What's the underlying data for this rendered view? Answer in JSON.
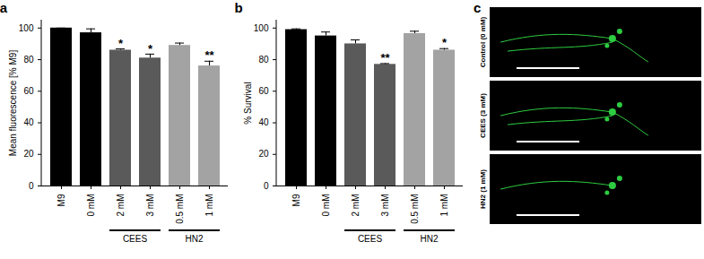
{
  "chart_data": [
    {
      "type": "bar",
      "title": "a",
      "categories": [
        "M9",
        "0 mM",
        "2 mM",
        "3 mM",
        "0.5 mM",
        "1 mM"
      ],
      "values": [
        100,
        97,
        86,
        81,
        89,
        76
      ],
      "errors": [
        0,
        2.5,
        0.8,
        2.5,
        1.5,
        3
      ],
      "significance": [
        null,
        null,
        "*",
        "*",
        null,
        "**"
      ],
      "colors": [
        "#000000",
        "#000000",
        "#5a5a5a",
        "#5a5a5a",
        "#a3a3a3",
        "#a3a3a3"
      ],
      "groups": [
        {
          "label": "CEES",
          "categories": [
            "2 mM",
            "3 mM"
          ]
        },
        {
          "label": "HN2",
          "categories": [
            "0.5 mM",
            "1 mM"
          ]
        }
      ],
      "y_label": "Mean fluorescence [% M9]",
      "ylim": [
        0,
        105
      ],
      "yticks": [
        0,
        20,
        40,
        60,
        80,
        100
      ]
    },
    {
      "type": "bar",
      "title": "b",
      "categories": [
        "M9",
        "0 mM",
        "2 mM",
        "3 mM",
        "0.5 mM",
        "1 mM"
      ],
      "values": [
        99,
        95,
        90,
        77,
        96.5,
        86
      ],
      "errors": [
        0.5,
        2.5,
        2.5,
        0.5,
        1.5,
        1
      ],
      "significance": [
        null,
        null,
        null,
        "**",
        null,
        "*"
      ],
      "colors": [
        "#000000",
        "#000000",
        "#5a5a5a",
        "#5a5a5a",
        "#a3a3a3",
        "#a3a3a3"
      ],
      "groups": [
        {
          "label": "CEES",
          "categories": [
            "2 mM",
            "3 mM"
          ]
        },
        {
          "label": "HN2",
          "categories": [
            "0.5 mM",
            "1 mM"
          ]
        }
      ],
      "y_label": "% Survival",
      "ylim": [
        0,
        105
      ],
      "yticks": [
        0,
        20,
        40,
        60,
        80,
        100
      ]
    }
  ],
  "image_panel": {
    "title": "c",
    "images": [
      {
        "label": "Control (0 mM)"
      },
      {
        "label": "CEES (3 mM)"
      },
      {
        "label": "HN2 (1 mM)"
      }
    ]
  }
}
